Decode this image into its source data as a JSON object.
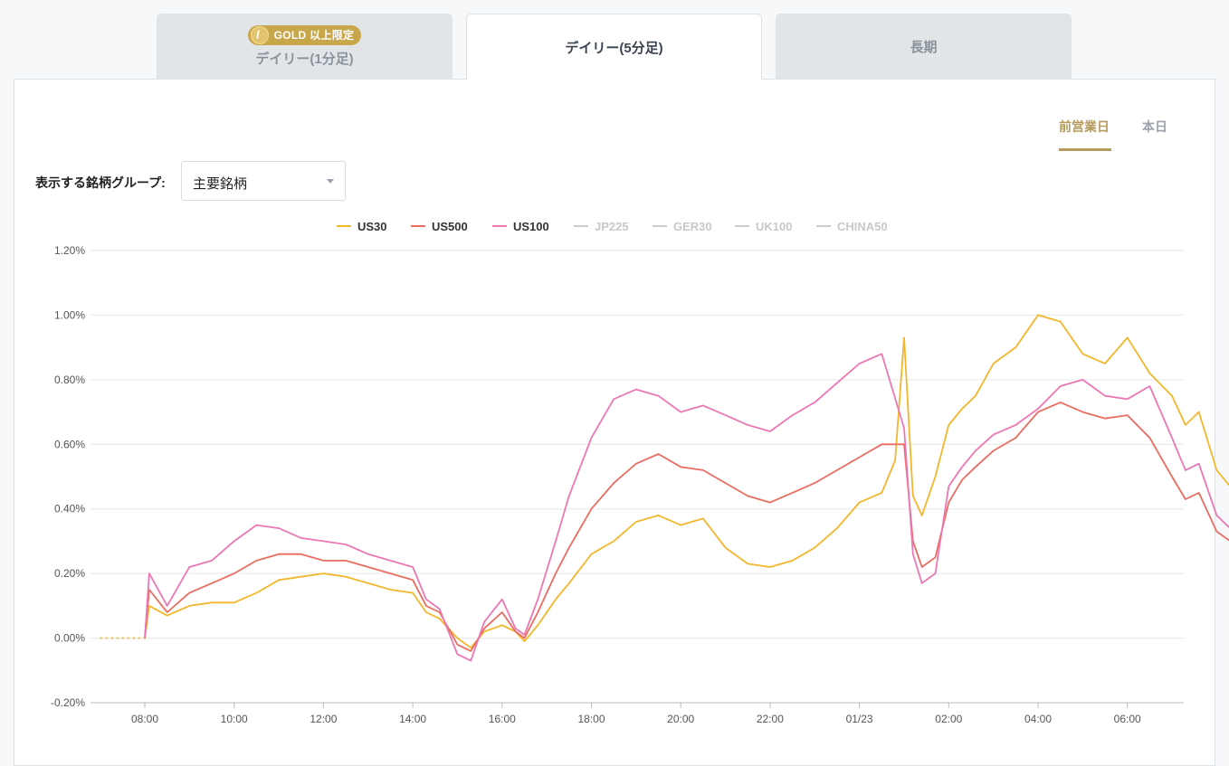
{
  "tabs": [
    {
      "label": "デイリー(1分足)",
      "badge": "GOLD 以上限定",
      "active": false
    },
    {
      "label": "デイリー(5分足)",
      "active": true
    },
    {
      "label": "長期",
      "active": false
    }
  ],
  "period_tabs": [
    {
      "label": "前営業日",
      "active": true
    },
    {
      "label": "本日",
      "active": false
    }
  ],
  "group_selector": {
    "label": "表示する銘柄グループ:",
    "value": "主要銘柄"
  },
  "colors": {
    "accent": "#b59a5e",
    "gold_badge": "#c8a64a"
  },
  "chart_data": {
    "type": "line",
    "ylim": [
      -0.2,
      1.2
    ],
    "yticks": [
      "-0.20%",
      "0.00%",
      "0.20%",
      "0.40%",
      "0.60%",
      "0.80%",
      "1.00%",
      "1.20%"
    ],
    "xticks": [
      "08:00",
      "10:00",
      "12:00",
      "14:00",
      "16:00",
      "18:00",
      "20:00",
      "22:00",
      "01/23",
      "02:00",
      "04:00",
      "06:00"
    ],
    "legend": [
      {
        "name": "US30",
        "color": "#f3b62c",
        "active": true
      },
      {
        "name": "US500",
        "color": "#ea6d61",
        "active": true
      },
      {
        "name": "US100",
        "color": "#ec77b5",
        "active": true
      },
      {
        "name": "JP225",
        "color": "#cccccc",
        "active": false
      },
      {
        "name": "GER30",
        "color": "#cccccc",
        "active": false
      },
      {
        "name": "UK100",
        "color": "#cccccc",
        "active": false
      },
      {
        "name": "CHINA50",
        "color": "#cccccc",
        "active": false
      }
    ],
    "series": [
      {
        "name": "US30",
        "color": "#f3b62c",
        "points": [
          [
            -1.0,
            0.0
          ],
          [
            0.0,
            0.0
          ],
          [
            0.1,
            0.1
          ],
          [
            0.5,
            0.07
          ],
          [
            1.0,
            0.1
          ],
          [
            1.5,
            0.11
          ],
          [
            2.0,
            0.11
          ],
          [
            2.5,
            0.14
          ],
          [
            3.0,
            0.18
          ],
          [
            3.5,
            0.19
          ],
          [
            4.0,
            0.2
          ],
          [
            4.5,
            0.19
          ],
          [
            5.0,
            0.17
          ],
          [
            5.5,
            0.15
          ],
          [
            6.0,
            0.14
          ],
          [
            6.3,
            0.08
          ],
          [
            6.6,
            0.06
          ],
          [
            7.0,
            0.0
          ],
          [
            7.3,
            -0.03
          ],
          [
            7.6,
            0.02
          ],
          [
            8.0,
            0.04
          ],
          [
            8.3,
            0.02
          ],
          [
            8.5,
            -0.01
          ],
          [
            8.8,
            0.04
          ],
          [
            9.2,
            0.12
          ],
          [
            9.5,
            0.17
          ],
          [
            10.0,
            0.26
          ],
          [
            10.5,
            0.3
          ],
          [
            11.0,
            0.36
          ],
          [
            11.5,
            0.38
          ],
          [
            12.0,
            0.35
          ],
          [
            12.5,
            0.37
          ],
          [
            13.0,
            0.28
          ],
          [
            13.5,
            0.23
          ],
          [
            14.0,
            0.22
          ],
          [
            14.5,
            0.24
          ],
          [
            15.0,
            0.28
          ],
          [
            15.5,
            0.34
          ],
          [
            16.0,
            0.42
          ],
          [
            16.5,
            0.45
          ],
          [
            16.8,
            0.55
          ],
          [
            17.0,
            0.93
          ],
          [
            17.2,
            0.44
          ],
          [
            17.4,
            0.38
          ],
          [
            17.7,
            0.5
          ],
          [
            18.0,
            0.66
          ],
          [
            18.3,
            0.71
          ],
          [
            18.6,
            0.75
          ],
          [
            19.0,
            0.85
          ],
          [
            19.5,
            0.9
          ],
          [
            20.0,
            1.0
          ],
          [
            20.5,
            0.98
          ],
          [
            21.0,
            0.88
          ],
          [
            21.5,
            0.85
          ],
          [
            22.0,
            0.93
          ],
          [
            22.5,
            0.82
          ],
          [
            23.0,
            0.75
          ],
          [
            23.3,
            0.66
          ],
          [
            23.6,
            0.7
          ],
          [
            24.0,
            0.52
          ],
          [
            24.3,
            0.47
          ],
          [
            24.7,
            0.55
          ],
          [
            25.0,
            0.57
          ],
          [
            25.4,
            0.53
          ],
          [
            25.8,
            0.44
          ]
        ]
      },
      {
        "name": "US500",
        "color": "#ea6d61",
        "points": [
          [
            0.0,
            0.0
          ],
          [
            0.1,
            0.15
          ],
          [
            0.5,
            0.08
          ],
          [
            1.0,
            0.14
          ],
          [
            1.5,
            0.17
          ],
          [
            2.0,
            0.2
          ],
          [
            2.5,
            0.24
          ],
          [
            3.0,
            0.26
          ],
          [
            3.5,
            0.26
          ],
          [
            4.0,
            0.24
          ],
          [
            4.5,
            0.24
          ],
          [
            5.0,
            0.22
          ],
          [
            5.5,
            0.2
          ],
          [
            6.0,
            0.18
          ],
          [
            6.3,
            0.1
          ],
          [
            6.6,
            0.08
          ],
          [
            7.0,
            -0.02
          ],
          [
            7.3,
            -0.04
          ],
          [
            7.6,
            0.03
          ],
          [
            8.0,
            0.08
          ],
          [
            8.3,
            0.02
          ],
          [
            8.5,
            0.0
          ],
          [
            8.8,
            0.08
          ],
          [
            9.2,
            0.2
          ],
          [
            9.5,
            0.28
          ],
          [
            10.0,
            0.4
          ],
          [
            10.5,
            0.48
          ],
          [
            11.0,
            0.54
          ],
          [
            11.5,
            0.57
          ],
          [
            12.0,
            0.53
          ],
          [
            12.5,
            0.52
          ],
          [
            13.0,
            0.48
          ],
          [
            13.5,
            0.44
          ],
          [
            14.0,
            0.42
          ],
          [
            14.5,
            0.45
          ],
          [
            15.0,
            0.48
          ],
          [
            15.5,
            0.52
          ],
          [
            16.0,
            0.56
          ],
          [
            16.5,
            0.6
          ],
          [
            17.0,
            0.6
          ],
          [
            17.2,
            0.3
          ],
          [
            17.4,
            0.22
          ],
          [
            17.7,
            0.25
          ],
          [
            18.0,
            0.42
          ],
          [
            18.3,
            0.49
          ],
          [
            18.6,
            0.53
          ],
          [
            19.0,
            0.58
          ],
          [
            19.5,
            0.62
          ],
          [
            20.0,
            0.7
          ],
          [
            20.5,
            0.73
          ],
          [
            21.0,
            0.7
          ],
          [
            21.5,
            0.68
          ],
          [
            22.0,
            0.69
          ],
          [
            22.5,
            0.62
          ],
          [
            23.0,
            0.5
          ],
          [
            23.3,
            0.43
          ],
          [
            23.6,
            0.45
          ],
          [
            24.0,
            0.33
          ],
          [
            24.3,
            0.3
          ],
          [
            24.7,
            0.41
          ],
          [
            25.0,
            0.42
          ],
          [
            25.4,
            0.43
          ],
          [
            25.8,
            0.34
          ]
        ]
      },
      {
        "name": "US100",
        "color": "#ec77b5",
        "points": [
          [
            0.0,
            0.0
          ],
          [
            0.1,
            0.2
          ],
          [
            0.5,
            0.1
          ],
          [
            1.0,
            0.22
          ],
          [
            1.5,
            0.24
          ],
          [
            2.0,
            0.3
          ],
          [
            2.5,
            0.35
          ],
          [
            3.0,
            0.34
          ],
          [
            3.5,
            0.31
          ],
          [
            4.0,
            0.3
          ],
          [
            4.5,
            0.29
          ],
          [
            5.0,
            0.26
          ],
          [
            5.5,
            0.24
          ],
          [
            6.0,
            0.22
          ],
          [
            6.3,
            0.12
          ],
          [
            6.6,
            0.09
          ],
          [
            7.0,
            -0.05
          ],
          [
            7.3,
            -0.07
          ],
          [
            7.6,
            0.05
          ],
          [
            8.0,
            0.12
          ],
          [
            8.3,
            0.03
          ],
          [
            8.5,
            0.01
          ],
          [
            8.8,
            0.12
          ],
          [
            9.2,
            0.3
          ],
          [
            9.5,
            0.44
          ],
          [
            10.0,
            0.62
          ],
          [
            10.5,
            0.74
          ],
          [
            11.0,
            0.77
          ],
          [
            11.5,
            0.75
          ],
          [
            12.0,
            0.7
          ],
          [
            12.5,
            0.72
          ],
          [
            13.0,
            0.69
          ],
          [
            13.5,
            0.66
          ],
          [
            14.0,
            0.64
          ],
          [
            14.5,
            0.69
          ],
          [
            15.0,
            0.73
          ],
          [
            15.5,
            0.79
          ],
          [
            16.0,
            0.85
          ],
          [
            16.5,
            0.88
          ],
          [
            17.0,
            0.65
          ],
          [
            17.2,
            0.26
          ],
          [
            17.4,
            0.17
          ],
          [
            17.7,
            0.2
          ],
          [
            18.0,
            0.47
          ],
          [
            18.3,
            0.53
          ],
          [
            18.6,
            0.58
          ],
          [
            19.0,
            0.63
          ],
          [
            19.5,
            0.66
          ],
          [
            20.0,
            0.71
          ],
          [
            20.5,
            0.78
          ],
          [
            21.0,
            0.8
          ],
          [
            21.5,
            0.75
          ],
          [
            22.0,
            0.74
          ],
          [
            22.5,
            0.78
          ],
          [
            23.0,
            0.62
          ],
          [
            23.3,
            0.52
          ],
          [
            23.6,
            0.54
          ],
          [
            24.0,
            0.38
          ],
          [
            24.3,
            0.34
          ],
          [
            24.7,
            0.55
          ],
          [
            25.0,
            0.57
          ],
          [
            25.4,
            0.6
          ],
          [
            25.8,
            0.45
          ]
        ]
      }
    ]
  }
}
